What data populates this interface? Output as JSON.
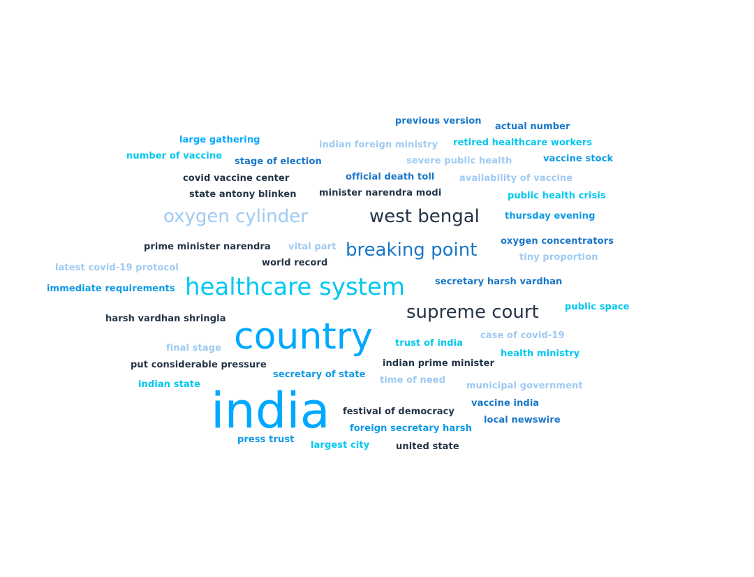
{
  "word_cloud": {
    "words": [
      {
        "text": "india",
        "color": "#00a8ff"
      },
      {
        "text": "country",
        "color": "#00a8ff"
      },
      {
        "text": "healthcare system",
        "color": "#00c8ef"
      },
      {
        "text": "oxygen cylinder",
        "color": "#9fcaf2"
      },
      {
        "text": "west bengal",
        "color": "#243447"
      },
      {
        "text": "breaking point",
        "color": "#1976c8"
      },
      {
        "text": "supreme court",
        "color": "#243447"
      },
      {
        "text": "previous version",
        "color": "#1976c8"
      },
      {
        "text": "actual number",
        "color": "#1976c8"
      },
      {
        "text": "large gathering",
        "color": "#00a8ff"
      },
      {
        "text": "indian foreign ministry",
        "color": "#9fcaf2"
      },
      {
        "text": "retired healthcare workers",
        "color": "#00c8ef"
      },
      {
        "text": "number of vaccine",
        "color": "#00c8ef"
      },
      {
        "text": "stage of election",
        "color": "#1976c8"
      },
      {
        "text": "severe public health",
        "color": "#9fcaf2"
      },
      {
        "text": "vaccine stock",
        "color": "#0e9ae6"
      },
      {
        "text": "covid vaccine center",
        "color": "#243447"
      },
      {
        "text": "official death toll",
        "color": "#1976c8"
      },
      {
        "text": "availability of vaccine",
        "color": "#9fcaf2"
      },
      {
        "text": "state antony blinken",
        "color": "#243447"
      },
      {
        "text": "minister narendra modi",
        "color": "#243447"
      },
      {
        "text": "public health crisis",
        "color": "#00c8ef"
      },
      {
        "text": "thursday evening",
        "color": "#0e9ae6"
      },
      {
        "text": "prime minister narendra",
        "color": "#243447"
      },
      {
        "text": "vital part",
        "color": "#9fcaf2"
      },
      {
        "text": "oxygen concentrators",
        "color": "#1976c8"
      },
      {
        "text": "tiny proportion",
        "color": "#9fcaf2"
      },
      {
        "text": "latest covid-19 protocol",
        "color": "#9fcaf2"
      },
      {
        "text": "world record",
        "color": "#243447"
      },
      {
        "text": "immediate requirements",
        "color": "#0e9ae6"
      },
      {
        "text": "secretary harsh vardhan",
        "color": "#1976c8"
      },
      {
        "text": "public space",
        "color": "#00c8ef"
      },
      {
        "text": "harsh vardhan shringla",
        "color": "#243447"
      },
      {
        "text": "case of covid-19",
        "color": "#9fcaf2"
      },
      {
        "text": "final stage",
        "color": "#9fcaf2"
      },
      {
        "text": "trust of india",
        "color": "#00c8ef"
      },
      {
        "text": "health ministry",
        "color": "#00c8ef"
      },
      {
        "text": "put considerable pressure",
        "color": "#243447"
      },
      {
        "text": "indian prime minister",
        "color": "#243447"
      },
      {
        "text": "secretary of state",
        "color": "#0e9ae6"
      },
      {
        "text": "time of need",
        "color": "#9fcaf2"
      },
      {
        "text": "indian state",
        "color": "#00c8ef"
      },
      {
        "text": "municipal government",
        "color": "#9fcaf2"
      },
      {
        "text": "vaccine india",
        "color": "#1976c8"
      },
      {
        "text": "festival of democracy",
        "color": "#243447"
      },
      {
        "text": "local newswire",
        "color": "#1976c8"
      },
      {
        "text": "foreign secretary harsh",
        "color": "#0e9ae6"
      },
      {
        "text": "press trust",
        "color": "#0e9ae6"
      },
      {
        "text": "largest city",
        "color": "#00c8ef"
      },
      {
        "text": "united state",
        "color": "#243447"
      }
    ]
  }
}
